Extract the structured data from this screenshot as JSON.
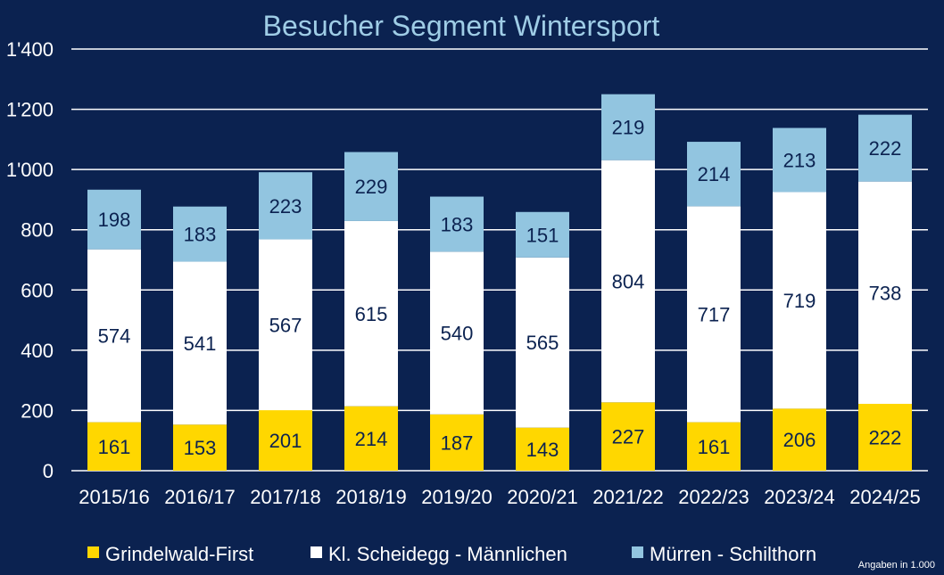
{
  "chart_data": {
    "type": "bar",
    "stacked": true,
    "title": "Besucher Segment Wintersport",
    "categories": [
      "2015/16",
      "2016/17",
      "2017/18",
      "2018/19",
      "2019/20",
      "2020/21",
      "2021/22",
      "2022/23",
      "2023/24",
      "2024/25"
    ],
    "series": [
      {
        "name": "Grindelwald-First",
        "color": "#ffd700",
        "label_color": "#0b2250",
        "values": [
          161,
          153,
          201,
          214,
          187,
          143,
          227,
          161,
          206,
          222
        ]
      },
      {
        "name": "Kl. Scheidegg - Männlichen",
        "color": "#ffffff",
        "label_color": "#0b2250",
        "values": [
          574,
          541,
          567,
          615,
          540,
          565,
          804,
          717,
          719,
          738
        ]
      },
      {
        "name": "Mürren - Schilthorn",
        "color": "#92c5e0",
        "label_color": "#0b2250",
        "values": [
          198,
          183,
          223,
          229,
          183,
          151,
          219,
          214,
          213,
          222
        ]
      }
    ],
    "ylim": [
      0,
      1400
    ],
    "yticks": [
      0,
      200,
      400,
      600,
      800,
      1000,
      1200,
      1400
    ],
    "ytick_labels": [
      "0",
      "200",
      "400",
      "600",
      "800",
      "1'000",
      "1'200",
      "1'400"
    ],
    "xlabel": "",
    "ylabel": "",
    "grid": true,
    "legend_position": "bottom",
    "note": "Angaben in 1.000"
  },
  "colors": {
    "background": "#0b2250",
    "title": "#9fcde6",
    "axis_text": "#ffffff",
    "grid": "#ffffff"
  }
}
